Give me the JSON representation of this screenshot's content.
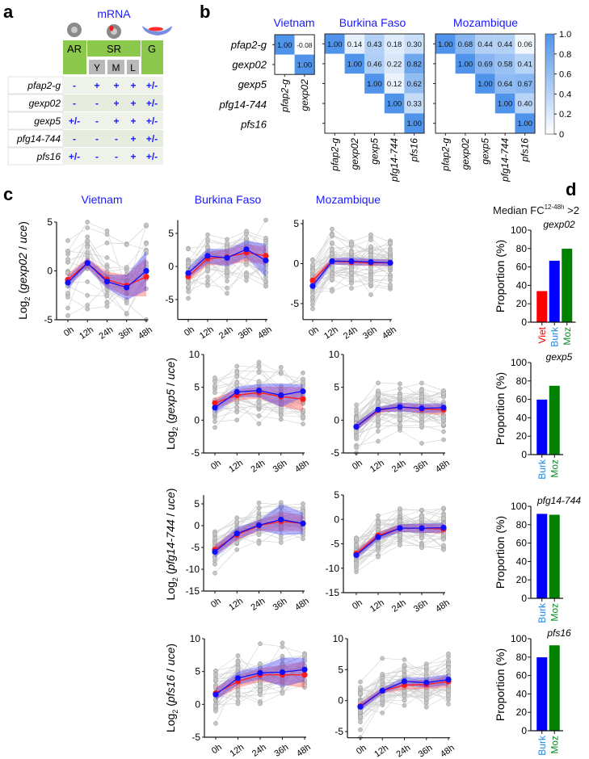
{
  "panel_labels": {
    "a": "a",
    "b": "b",
    "c": "c",
    "d": "d"
  },
  "panel_a": {
    "title": "mRNA",
    "icons": [
      "ring-stage-parasite-icon",
      "sexual-ring-parasite-icon",
      "gametocyte-icon"
    ],
    "headers": {
      "ar": "AR",
      "sr": "SR",
      "g": "G"
    },
    "stages": [
      "Y",
      "M",
      "L"
    ],
    "rows": [
      {
        "gene": "pfap2-g",
        "values": [
          "-",
          "+",
          "+",
          "+",
          "+/-"
        ]
      },
      {
        "gene": "gexp02",
        "values": [
          "-",
          "-",
          "+",
          "+",
          "+/-"
        ]
      },
      {
        "gene": "gexp5",
        "values": [
          "+/-",
          "-",
          "+",
          "+",
          "+/-"
        ]
      },
      {
        "gene": "pfg14-744",
        "values": [
          "-",
          "-",
          "-",
          "+",
          "+/-"
        ]
      },
      {
        "gene": "pfs16",
        "values": [
          "+/-",
          "-",
          "-",
          "+",
          "+/-"
        ]
      }
    ],
    "colors": {
      "header_green": "#8cc84b",
      "stage_gray": "#b9b9b9",
      "value_blue": "#1a1aff"
    }
  },
  "panel_b": {
    "row_labels": [
      "pfap2-g",
      "gexp02",
      "gexp5",
      "pfg14-744",
      "pfs16"
    ],
    "heatmaps": [
      {
        "country": "Vietnam",
        "genes": [
          "pfap2-g",
          "gexp02"
        ],
        "matrix": [
          [
            1.0,
            -0.08
          ],
          [
            null,
            1.0
          ]
        ]
      },
      {
        "country": "Burkina Faso",
        "genes": [
          "pfap2-g",
          "gexp02",
          "gexp5",
          "pfg14-744",
          "pfs16"
        ],
        "matrix": [
          [
            1.0,
            0.14,
            0.43,
            0.18,
            0.3
          ],
          [
            null,
            1.0,
            0.46,
            0.22,
            0.82
          ],
          [
            null,
            null,
            1.0,
            0.12,
            0.62
          ],
          [
            null,
            null,
            null,
            1.0,
            0.33
          ],
          [
            null,
            null,
            null,
            null,
            1.0
          ]
        ]
      },
      {
        "country": "Mozambique",
        "genes": [
          "pfap2-g",
          "gexp02",
          "gexp5",
          "pfg14-744",
          "pfs16"
        ],
        "matrix": [
          [
            1.0,
            0.68,
            0.44,
            0.44,
            0.06
          ],
          [
            null,
            1.0,
            0.69,
            0.58,
            0.41
          ],
          [
            null,
            null,
            1.0,
            0.64,
            0.67
          ],
          [
            null,
            null,
            null,
            1.0,
            0.4
          ],
          [
            null,
            null,
            null,
            null,
            1.0
          ]
        ]
      }
    ],
    "colorbar": {
      "ticks": [
        "1.0",
        "0.8",
        "0.6",
        "0.4",
        "0.2",
        "0"
      ],
      "min": 0,
      "max": 1,
      "low_color": "#ffffff",
      "high_color": "#4f94ea"
    }
  },
  "panel_c": {
    "column_titles": [
      "Vietnam",
      "Burkina Faso",
      "Mozambique"
    ],
    "ylabel_parts": {
      "log": "Log",
      "sub": "2",
      "denom": "uce"
    },
    "row_genes": [
      "gexp02",
      "gexp5",
      "pfg14-744",
      "pfs16"
    ],
    "colors": {
      "red": "#ff1a1a",
      "blue": "#1010ff",
      "individual": "#b5b5b5"
    }
  },
  "chart_data": {
    "type": "line",
    "x": [
      "0h",
      "12h",
      "24h",
      "36h",
      "48h"
    ],
    "line_plots": [
      {
        "gene": "gexp02",
        "country": "Vietnam",
        "ylim": [
          -5,
          5
        ],
        "yticks": [
          5,
          0,
          -5
        ],
        "spread": 2.2,
        "n": 20,
        "series": [
          {
            "name": "red",
            "values": [
              -0.9,
              0.8,
              -0.9,
              -1.5,
              -0.6
            ],
            "band": [
              0.6,
              0.5,
              0.8,
              1.1,
              2.0
            ]
          },
          {
            "name": "blue",
            "values": [
              -1.2,
              0.8,
              -1.1,
              -1.7,
              0.0
            ],
            "band": [
              0.6,
              0.5,
              0.7,
              1.3,
              2.0
            ]
          }
        ]
      },
      {
        "gene": "gexp02",
        "country": "Burkina Faso",
        "ylim": [
          -8,
          7
        ],
        "yticks": [
          5,
          0,
          -5
        ],
        "spread": 2.4,
        "n": 30,
        "series": [
          {
            "name": "red",
            "values": [
              -1.5,
              1.2,
              1.4,
              2.1,
              1.6
            ],
            "band": [
              0.8,
              1.0,
              1.2,
              1.3,
              1.4
            ]
          },
          {
            "name": "blue",
            "values": [
              -1.0,
              1.6,
              1.3,
              2.6,
              0.9
            ],
            "band": [
              0.8,
              1.1,
              1.3,
              1.3,
              2.5
            ]
          }
        ]
      },
      {
        "gene": "gexp02",
        "country": "Mozambique",
        "ylim": [
          -7,
          5.5
        ],
        "yticks": [
          5,
          0,
          -5
        ],
        "spread": 1.8,
        "n": 45,
        "series": [
          {
            "name": "red",
            "values": [
              -2.1,
              0.3,
              0.2,
              0.1,
              0.1
            ],
            "band": [
              0.6,
              0.4,
              0.4,
              0.4,
              0.4
            ]
          },
          {
            "name": "blue",
            "values": [
              -2.8,
              0.3,
              0.3,
              0.2,
              0.1
            ],
            "band": [
              0.7,
              0.4,
              0.5,
              0.4,
              0.4
            ]
          }
        ]
      },
      {
        "gene": "gexp5",
        "country": "Burkina Faso",
        "ylim": [
          -5,
          10
        ],
        "yticks": [
          10,
          5,
          0,
          -5
        ],
        "spread": 2.3,
        "n": 30,
        "series": [
          {
            "name": "red",
            "values": [
              2.6,
              3.8,
              4.2,
              3.6,
              3.2
            ],
            "band": [
              0.8,
              0.8,
              0.9,
              1.5,
              1.8
            ]
          },
          {
            "name": "blue",
            "values": [
              1.9,
              4.3,
              4.5,
              3.8,
              4.4
            ],
            "band": [
              0.9,
              0.8,
              1.0,
              1.8,
              1.0
            ]
          }
        ]
      },
      {
        "gene": "gexp5",
        "country": "Mozambique",
        "ylim": [
          -5,
          10
        ],
        "yticks": [
          10,
          5,
          0,
          -5
        ],
        "spread": 2.0,
        "n": 45,
        "series": [
          {
            "name": "red",
            "values": [
              -1.0,
              1.5,
              2.0,
              1.7,
              1.6
            ],
            "band": [
              0.6,
              0.4,
              0.6,
              0.7,
              0.8
            ]
          },
          {
            "name": "blue",
            "values": [
              -1.0,
              1.6,
              2.0,
              1.8,
              1.9
            ],
            "band": [
              0.7,
              0.4,
              0.7,
              0.7,
              0.7
            ]
          }
        ]
      },
      {
        "gene": "pfg14-744",
        "country": "Burkina Faso",
        "ylim": [
          -15,
          7
        ],
        "yticks": [
          5,
          0,
          -5,
          -10,
          -15
        ],
        "spread": 2.5,
        "n": 30,
        "series": [
          {
            "name": "red",
            "values": [
              -5.5,
              -2.1,
              0.0,
              1.0,
              0.5
            ],
            "band": [
              1.2,
              1.3,
              1.2,
              2.2,
              1.8
            ]
          },
          {
            "name": "blue",
            "values": [
              -6.0,
              -1.8,
              0.1,
              1.4,
              0.5
            ],
            "band": [
              1.3,
              1.4,
              1.2,
              3.5,
              2.5
            ]
          }
        ]
      },
      {
        "gene": "pfg14-744",
        "country": "Mozambique",
        "ylim": [
          -15,
          5
        ],
        "yticks": [
          5,
          0,
          -5,
          -10,
          -15
        ],
        "spread": 2.2,
        "n": 45,
        "series": [
          {
            "name": "red",
            "values": [
              -7.0,
              -3.3,
              -1.8,
              -1.8,
              -2.0
            ],
            "band": [
              0.8,
              0.7,
              0.8,
              0.9,
              1.0
            ]
          },
          {
            "name": "blue",
            "values": [
              -7.3,
              -3.6,
              -1.8,
              -1.8,
              -1.7
            ],
            "band": [
              0.8,
              0.8,
              0.8,
              1.0,
              1.0
            ]
          }
        ]
      },
      {
        "gene": "pfs16",
        "country": "Burkina Faso",
        "ylim": [
          -5,
          10
        ],
        "yticks": [
          10,
          5,
          0,
          -5
        ],
        "spread": 2.6,
        "n": 30,
        "series": [
          {
            "name": "red",
            "values": [
              1.7,
              3.5,
              4.5,
              4.5,
              4.5
            ],
            "band": [
              0.9,
              1.0,
              1.0,
              1.5,
              2.0
            ]
          },
          {
            "name": "blue",
            "values": [
              1.5,
              4.0,
              4.8,
              4.9,
              5.3
            ],
            "band": [
              0.9,
              1.0,
              1.0,
              2.2,
              1.8
            ]
          }
        ]
      },
      {
        "gene": "pfs16",
        "country": "Mozambique",
        "ylim": [
          -6,
          10
        ],
        "yticks": [
          10,
          5,
          0,
          -5
        ],
        "spread": 2.2,
        "n": 45,
        "series": [
          {
            "name": "red",
            "values": [
              -0.9,
              1.6,
              2.5,
              2.6,
              3.1
            ],
            "band": [
              0.6,
              0.5,
              0.7,
              0.8,
              0.9
            ]
          },
          {
            "name": "blue",
            "values": [
              -1.0,
              1.6,
              3.1,
              2.9,
              3.4
            ],
            "band": [
              0.6,
              0.5,
              0.7,
              0.8,
              0.9
            ]
          }
        ]
      }
    ],
    "bar_title": {
      "main": "Median FC",
      "sup": "12-48h",
      "tail": " >2"
    },
    "bar_ylabel": "Proportion (%)",
    "bar_ylim": [
      0,
      100
    ],
    "bar_yticks": [
      0,
      20,
      40,
      60,
      80,
      100
    ],
    "bar_plots": [
      {
        "gene": "gexp02",
        "categories": [
          "Viet",
          "Burk",
          "Moz"
        ],
        "values": [
          34,
          67,
          80
        ]
      },
      {
        "gene": "gexp5",
        "categories": [
          "Burk",
          "Moz"
        ],
        "values": [
          60,
          75
        ]
      },
      {
        "gene": "pfg14-744",
        "categories": [
          "Burk",
          "Moz"
        ],
        "values": [
          92,
          91
        ]
      },
      {
        "gene": "pfs16",
        "categories": [
          "Burk",
          "Moz"
        ],
        "values": [
          80,
          93
        ]
      }
    ],
    "bar_colors": {
      "Viet": "#ff0000",
      "Burk": "#0000ff",
      "Moz": "#008000"
    },
    "bar_label_colors": {
      "Viet": "#ff0000",
      "Burk": "#1e88e5",
      "Moz": "#0a8a2a"
    }
  }
}
